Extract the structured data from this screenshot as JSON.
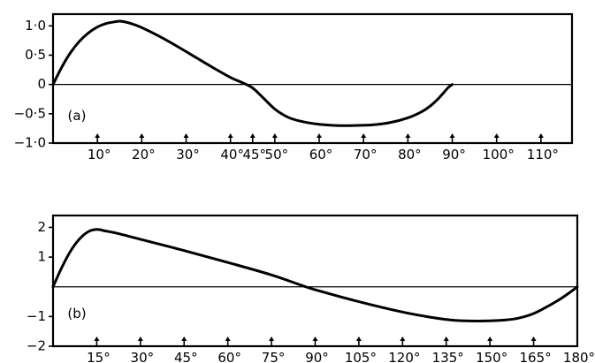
{
  "chart_data": [
    {
      "type": "line",
      "panel_label": "(a)",
      "title": "",
      "xlabel": "",
      "ylabel": "",
      "xlim": [
        0,
        117
      ],
      "ylim": [
        -1.0,
        1.2
      ],
      "grid": false,
      "y_ticks": [
        {
          "value": 1.0,
          "label": "1·0"
        },
        {
          "value": 0.5,
          "label": "0·5"
        },
        {
          "value": 0,
          "label": "0"
        },
        {
          "value": -0.5,
          "label": "−0·5"
        },
        {
          "value": -1.0,
          "label": "−1·0"
        }
      ],
      "x_ticks": [
        {
          "value": 10,
          "label": "10°"
        },
        {
          "value": 20,
          "label": "20°"
        },
        {
          "value": 30,
          "label": "30°"
        },
        {
          "value": 40,
          "label": "40°"
        },
        {
          "value": 45,
          "label": "45°"
        },
        {
          "value": 50,
          "label": "50°"
        },
        {
          "value": 60,
          "label": "60°"
        },
        {
          "value": 70,
          "label": "70°"
        },
        {
          "value": 80,
          "label": "80°"
        },
        {
          "value": 90,
          "label": "90°"
        },
        {
          "value": 100,
          "label": "100°"
        },
        {
          "value": 110,
          "label": "110°"
        }
      ],
      "series": [
        {
          "x": [
            0,
            2,
            4,
            6,
            8,
            10,
            12,
            14,
            15,
            16,
            18,
            20,
            24,
            28,
            32,
            36,
            40,
            43,
            45,
            47,
            50,
            53,
            56,
            60,
            64,
            68,
            72,
            76,
            80,
            83,
            85,
            87,
            89,
            90
          ],
          "y": [
            0,
            0.3,
            0.55,
            0.74,
            0.88,
            0.98,
            1.04,
            1.07,
            1.08,
            1.07,
            1.03,
            0.97,
            0.82,
            0.65,
            0.47,
            0.29,
            0.12,
            0.02,
            -0.06,
            -0.2,
            -0.42,
            -0.56,
            -0.63,
            -0.68,
            -0.7,
            -0.7,
            -0.69,
            -0.65,
            -0.57,
            -0.47,
            -0.37,
            -0.23,
            -0.06,
            0
          ]
        }
      ]
    },
    {
      "type": "line",
      "panel_label": "(b)",
      "title": "",
      "xlabel": "",
      "ylabel": "",
      "xlim": [
        0,
        180
      ],
      "ylim": [
        -2,
        2.4
      ],
      "grid": false,
      "y_ticks": [
        {
          "value": 2,
          "label": "2"
        },
        {
          "value": 1,
          "label": "1"
        },
        {
          "value": -1,
          "label": "−1"
        },
        {
          "value": -2,
          "label": "−2"
        }
      ],
      "x_ticks": [
        {
          "value": 15,
          "label": "15°"
        },
        {
          "value": 30,
          "label": "30°"
        },
        {
          "value": 45,
          "label": "45°"
        },
        {
          "value": 60,
          "label": "60°"
        },
        {
          "value": 75,
          "label": "75°"
        },
        {
          "value": 90,
          "label": "90°"
        },
        {
          "value": 105,
          "label": "105°"
        },
        {
          "value": 120,
          "label": "120°"
        },
        {
          "value": 135,
          "label": "135°"
        },
        {
          "value": 150,
          "label": "150°"
        },
        {
          "value": 165,
          "label": "165°"
        },
        {
          "value": 180,
          "label": "180°"
        }
      ],
      "series": [
        {
          "x": [
            0,
            3,
            6,
            9,
            12,
            15,
            18,
            22,
            30,
            45,
            60,
            75,
            85,
            90,
            105,
            120,
            130,
            135,
            140,
            148,
            155,
            160,
            165,
            170,
            174,
            177,
            180
          ],
          "y": [
            0,
            0.65,
            1.2,
            1.6,
            1.85,
            1.93,
            1.88,
            1.8,
            1.6,
            1.22,
            0.82,
            0.4,
            0.06,
            -0.1,
            -0.5,
            -0.85,
            -1.03,
            -1.1,
            -1.14,
            -1.15,
            -1.12,
            -1.05,
            -0.9,
            -0.65,
            -0.42,
            -0.22,
            0
          ]
        }
      ]
    }
  ]
}
